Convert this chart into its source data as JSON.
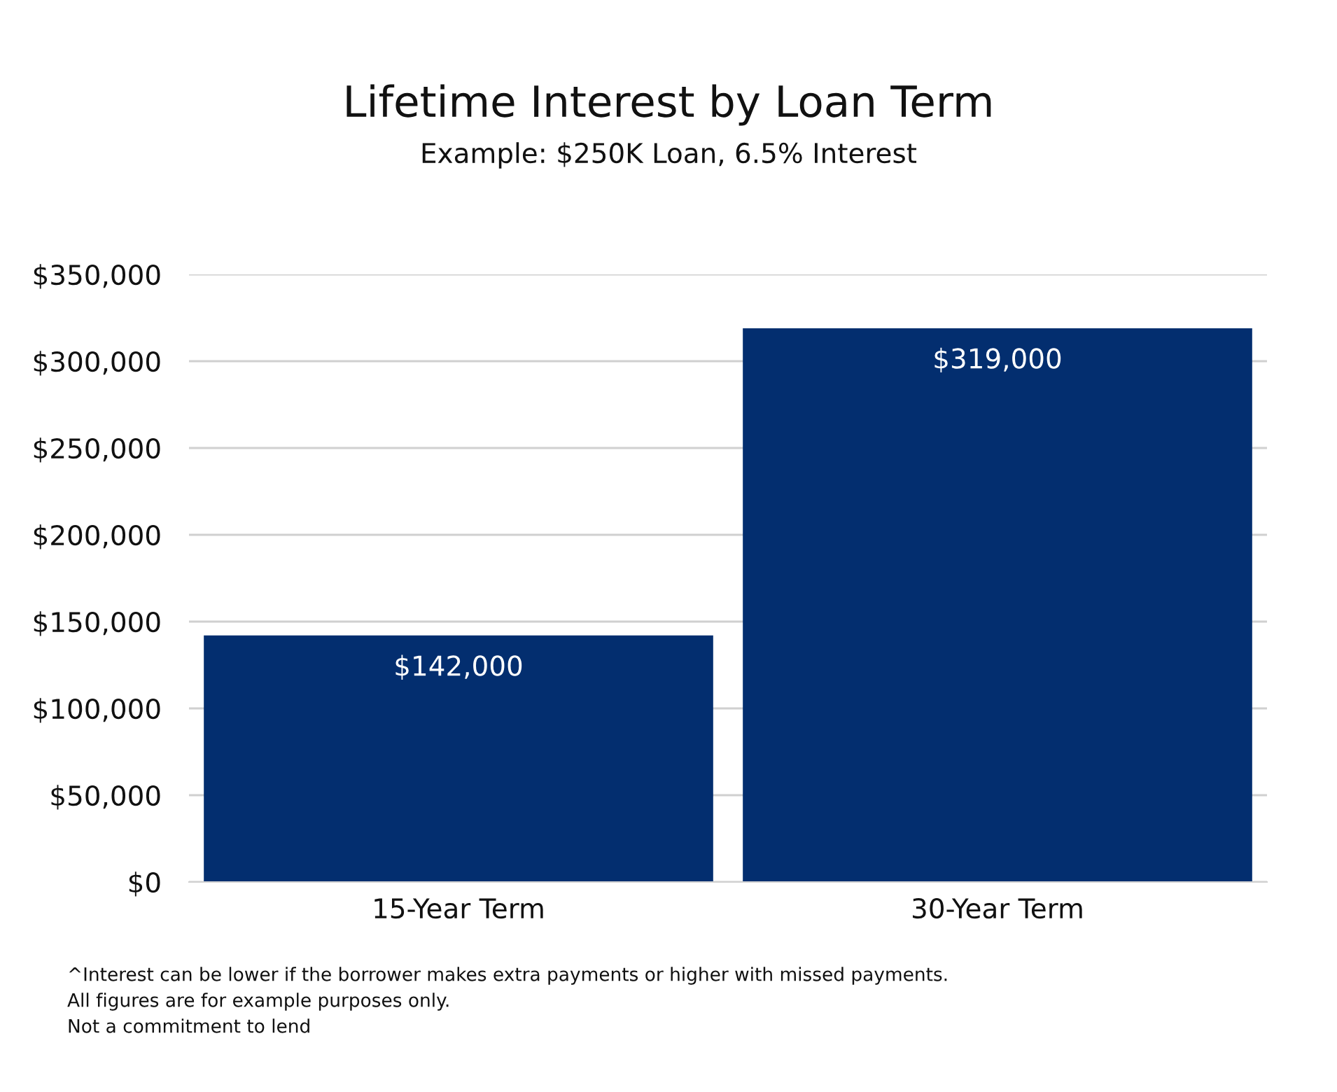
{
  "chart_data": {
    "type": "bar",
    "title": "Lifetime Interest by Loan Term",
    "subtitle": "Example: $250K Loan, 6.5% Interest",
    "categories": [
      "15-Year Term",
      "30-Year Term"
    ],
    "values": [
      142000,
      319000
    ],
    "value_labels": [
      "$142,000",
      "$319,000"
    ],
    "color": "#032e6f",
    "ylim": [
      0,
      350000
    ],
    "yticks": [
      {
        "value": 0,
        "label": "$0"
      },
      {
        "value": 50000,
        "label": "$50,000"
      },
      {
        "value": 100000,
        "label": "$100,000"
      },
      {
        "value": 150000,
        "label": "$150,000"
      },
      {
        "value": 200000,
        "label": "$200,000"
      },
      {
        "value": 250000,
        "label": "$250,000"
      },
      {
        "value": 300000,
        "label": "$300,000"
      },
      {
        "value": 350000,
        "label": "$350,000"
      }
    ],
    "grid": "y",
    "legend": false,
    "annotations": [
      "^Interest can be lower if the borrower makes extra payments or higher with missed payments.",
      "All figures are for example purposes only.",
      "Not a commitment to lend"
    ]
  }
}
